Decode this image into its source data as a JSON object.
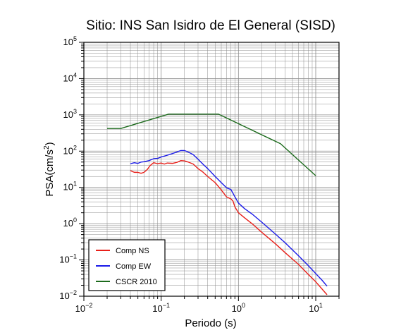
{
  "chart_data": {
    "type": "line",
    "title": "Sitio: INS San Isidro de El General (SISD)",
    "xlabel": "Periodo (s)",
    "ylabel": {
      "base": "PSA(cm/s",
      "exp": "2",
      "close": ")"
    },
    "x_scale": "log",
    "y_scale": "log",
    "xlim": [
      0.01,
      20
    ],
    "ylim": [
      0.01,
      100000
    ],
    "grid": true,
    "legend_position": "bottom-left",
    "x_ticks": [
      {
        "base": "10",
        "exp": "−2",
        "value": 0.01
      },
      {
        "base": "10",
        "exp": "−1",
        "value": 0.1
      },
      {
        "base": "10",
        "exp": "0",
        "value": 1
      },
      {
        "base": "10",
        "exp": "1",
        "value": 10
      }
    ],
    "y_ticks": [
      {
        "base": "10",
        "exp": "−2",
        "value": 0.01
      },
      {
        "base": "10",
        "exp": "−1",
        "value": 0.1
      },
      {
        "base": "10",
        "exp": "0",
        "value": 1
      },
      {
        "base": "10",
        "exp": "1",
        "value": 10
      },
      {
        "base": "10",
        "exp": "2",
        "value": 100
      },
      {
        "base": "10",
        "exp": "3",
        "value": 1000
      },
      {
        "base": "10",
        "exp": "4",
        "value": 10000
      },
      {
        "base": "10",
        "exp": "5",
        "value": 100000
      }
    ],
    "series": [
      {
        "name": "Comp NS",
        "color": "#e8201a",
        "points": [
          [
            0.04,
            29
          ],
          [
            0.045,
            26
          ],
          [
            0.05,
            26
          ],
          [
            0.055,
            24.5
          ],
          [
            0.06,
            26
          ],
          [
            0.066,
            31
          ],
          [
            0.072,
            40
          ],
          [
            0.08,
            48
          ],
          [
            0.09,
            45
          ],
          [
            0.1,
            47
          ],
          [
            0.11,
            44
          ],
          [
            0.12,
            47
          ],
          [
            0.14,
            46
          ],
          [
            0.16,
            49
          ],
          [
            0.18,
            55
          ],
          [
            0.2,
            54
          ],
          [
            0.23,
            49
          ],
          [
            0.26,
            44
          ],
          [
            0.3,
            33
          ],
          [
            0.35,
            26
          ],
          [
            0.4,
            20
          ],
          [
            0.5,
            13.5
          ],
          [
            0.6,
            8.5
          ],
          [
            0.7,
            5.5
          ],
          [
            0.8,
            4.8
          ],
          [
            0.85,
            4.2
          ],
          [
            0.9,
            2.9
          ],
          [
            1.0,
            2.0
          ],
          [
            1.2,
            1.45
          ],
          [
            1.5,
            1.0
          ],
          [
            2.0,
            0.58
          ],
          [
            3.0,
            0.28
          ],
          [
            4.0,
            0.16
          ],
          [
            6.0,
            0.075
          ],
          [
            8.0,
            0.04
          ],
          [
            10.0,
            0.025
          ],
          [
            12.0,
            0.016
          ],
          [
            14.0,
            0.011
          ]
        ]
      },
      {
        "name": "Comp EW",
        "color": "#1a1ae8",
        "points": [
          [
            0.04,
            45
          ],
          [
            0.045,
            48
          ],
          [
            0.05,
            46
          ],
          [
            0.055,
            50
          ],
          [
            0.06,
            51
          ],
          [
            0.07,
            55
          ],
          [
            0.08,
            62
          ],
          [
            0.09,
            63
          ],
          [
            0.1,
            69
          ],
          [
            0.12,
            77
          ],
          [
            0.14,
            86
          ],
          [
            0.16,
            95
          ],
          [
            0.18,
            104
          ],
          [
            0.2,
            104
          ],
          [
            0.23,
            92
          ],
          [
            0.26,
            80
          ],
          [
            0.3,
            60
          ],
          [
            0.35,
            43
          ],
          [
            0.4,
            33
          ],
          [
            0.5,
            20
          ],
          [
            0.6,
            13.5
          ],
          [
            0.7,
            9.8
          ],
          [
            0.8,
            8.7
          ],
          [
            0.9,
            5.5
          ],
          [
            1.0,
            3.7
          ],
          [
            1.2,
            2.6
          ],
          [
            1.5,
            1.85
          ],
          [
            2.0,
            1.1
          ],
          [
            3.0,
            0.52
          ],
          [
            4.0,
            0.3
          ],
          [
            6.0,
            0.13
          ],
          [
            8.0,
            0.07
          ],
          [
            10.0,
            0.042
          ],
          [
            12.0,
            0.028
          ],
          [
            14.0,
            0.019
          ]
        ]
      },
      {
        "name": "CSCR 2010",
        "color": "#1d6b1d",
        "points": [
          [
            0.02,
            420
          ],
          [
            0.03,
            420
          ],
          [
            0.125,
            1050
          ],
          [
            0.55,
            1050
          ],
          [
            3.5,
            160
          ],
          [
            10.0,
            21
          ]
        ]
      }
    ]
  }
}
